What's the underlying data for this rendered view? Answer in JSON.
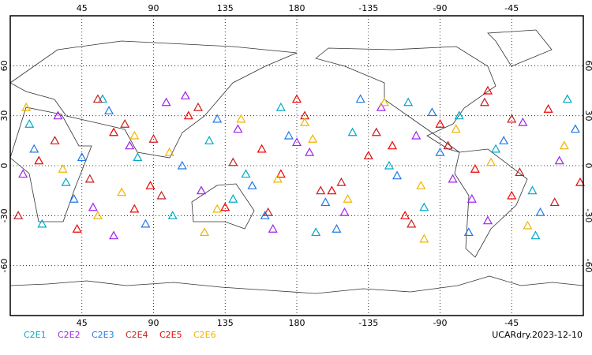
{
  "chart_data": {
    "type": "scatter",
    "label": "UCARdry.2023-12-10",
    "xlim": [
      0,
      360
    ],
    "ylim": [
      -90,
      90
    ],
    "xticks": [
      45,
      90,
      135,
      180,
      {
        "value": 225,
        "label": "-135"
      },
      {
        "value": 270,
        "label": "-90"
      },
      {
        "value": 315,
        "label": "-45"
      }
    ],
    "yticks": [
      -60,
      -30,
      0,
      30,
      60
    ],
    "grid": true,
    "series": [
      {
        "name": "C2E1",
        "color": "#00a8c8",
        "x": [
          12,
          35,
          58,
          80,
          102,
          125,
          148,
          170,
          192,
          215,
          238,
          260,
          282,
          305,
          328,
          350,
          20,
          140,
          250,
          330
        ],
        "values": [
          25,
          -10,
          40,
          5,
          -30,
          15,
          -5,
          35,
          -40,
          20,
          0,
          -25,
          30,
          10,
          -15,
          40,
          -35,
          -20,
          38,
          -42
        ]
      },
      {
        "name": "C2E2",
        "color": "#a020f0",
        "x": [
          8,
          30,
          52,
          75,
          98,
          120,
          143,
          165,
          188,
          210,
          233,
          255,
          278,
          300,
          322,
          345,
          65,
          180,
          290,
          110
        ],
        "values": [
          -5,
          30,
          -25,
          12,
          38,
          -15,
          22,
          -38,
          8,
          -28,
          35,
          18,
          -8,
          -33,
          26,
          3,
          -42,
          14,
          -20,
          42
        ]
      },
      {
        "name": "C2E3",
        "color": "#1e78e6",
        "x": [
          15,
          40,
          62,
          85,
          108,
          130,
          152,
          175,
          198,
          220,
          243,
          265,
          288,
          310,
          333,
          355,
          45,
          205,
          270,
          160
        ],
        "values": [
          10,
          -20,
          33,
          -35,
          0,
          28,
          -12,
          18,
          -22,
          40,
          -6,
          32,
          -40,
          15,
          -28,
          22,
          5,
          -38,
          8,
          -30
        ]
      },
      {
        "name": "C2E4",
        "color": "#c81e1e",
        "x": [
          5,
          28,
          50,
          72,
          95,
          118,
          140,
          162,
          185,
          208,
          230,
          252,
          275,
          298,
          320,
          342,
          90,
          195,
          315,
          55
        ],
        "values": [
          -30,
          15,
          -8,
          25,
          -18,
          35,
          2,
          -28,
          30,
          -10,
          20,
          -35,
          12,
          38,
          -4,
          -22,
          16,
          -15,
          28,
          40
        ]
      },
      {
        "name": "C2E5",
        "color": "#f00000",
        "x": [
          18,
          42,
          65,
          88,
          112,
          135,
          158,
          180,
          202,
          225,
          248,
          270,
          292,
          315,
          338,
          358,
          78,
          170,
          240,
          300
        ],
        "values": [
          3,
          -38,
          20,
          -12,
          30,
          -25,
          10,
          40,
          -15,
          6,
          -30,
          25,
          -2,
          -18,
          34,
          -10,
          -26,
          -5,
          12,
          45
        ]
      },
      {
        "name": "C2E6",
        "color": "#f0b400",
        "x": [
          10,
          33,
          55,
          78,
          100,
          122,
          145,
          168,
          190,
          212,
          235,
          258,
          280,
          302,
          325,
          348,
          70,
          185,
          260,
          130
        ],
        "values": [
          35,
          -2,
          -30,
          18,
          8,
          -40,
          28,
          -8,
          16,
          -20,
          38,
          -12,
          22,
          2,
          -36,
          12,
          -16,
          26,
          -44,
          -26
        ]
      }
    ]
  }
}
